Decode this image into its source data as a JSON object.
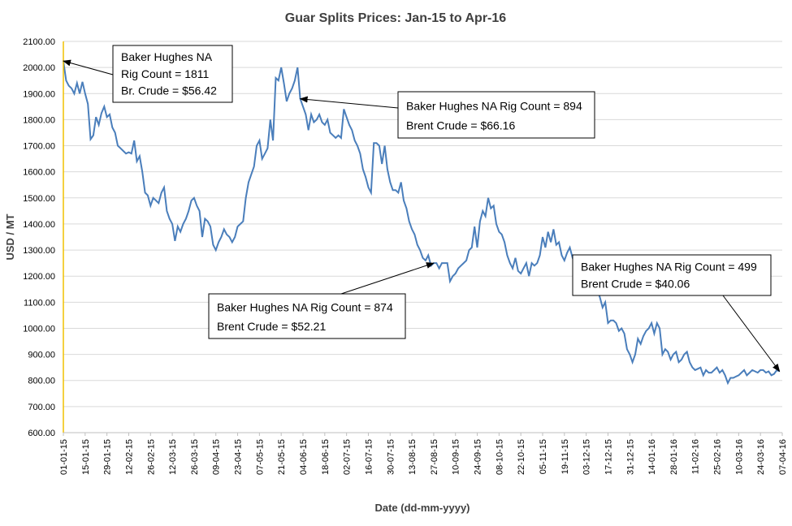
{
  "chart_data": {
    "type": "line",
    "title": "Guar Splits Prices: Jan-15 to Apr-16",
    "xlabel": "Date (dd-mm-yyyy)",
    "ylabel": "USD / MT",
    "ylim": [
      600,
      2100
    ],
    "yticks": [
      "600.00",
      "700.00",
      "800.00",
      "900.00",
      "1000.00",
      "1100.00",
      "1200.00",
      "1300.00",
      "1400.00",
      "1500.00",
      "1600.00",
      "1700.00",
      "1800.00",
      "1900.00",
      "2000.00",
      "2100.00"
    ],
    "xtick_labels": [
      "01-01-15",
      "15-01-15",
      "29-01-15",
      "12-02-15",
      "26-02-15",
      "12-03-15",
      "26-03-15",
      "09-04-15",
      "23-04-15",
      "07-05-15",
      "21-05-15",
      "04-06-15",
      "18-06-15",
      "02-07-15",
      "16-07-15",
      "30-07-15",
      "13-08-15",
      "27-08-15",
      "10-09-15",
      "24-09-15",
      "08-10-15",
      "22-10-15",
      "05-11-15",
      "19-11-15",
      "03-12-15",
      "17-12-15",
      "31-12-15",
      "14-01-16",
      "28-01-16",
      "11-02-16",
      "25-02-16",
      "10-03-16",
      "24-03-16",
      "07-04-16"
    ],
    "grid": "horizontal",
    "legend": "none",
    "line_color": "#4a7ebb",
    "series": [
      {
        "points": [
          [
            0,
            2025
          ],
          [
            1,
            1950
          ],
          [
            2,
            1930
          ],
          [
            3,
            1920
          ],
          [
            4,
            1900
          ],
          [
            5,
            1940
          ],
          [
            6,
            1900
          ],
          [
            7,
            1945
          ],
          [
            8,
            1900
          ],
          [
            9,
            1860
          ],
          [
            10,
            1725
          ],
          [
            11,
            1740
          ],
          [
            12,
            1810
          ],
          [
            13,
            1780
          ],
          [
            14,
            1825
          ],
          [
            15,
            1850
          ],
          [
            16,
            1810
          ],
          [
            17,
            1820
          ],
          [
            18,
            1770
          ],
          [
            19,
            1750
          ],
          [
            20,
            1700
          ],
          [
            21,
            1690
          ],
          [
            22,
            1680
          ],
          [
            23,
            1670
          ],
          [
            24,
            1675
          ],
          [
            25,
            1670
          ],
          [
            26,
            1720
          ],
          [
            27,
            1640
          ],
          [
            28,
            1660
          ],
          [
            29,
            1600
          ],
          [
            30,
            1520
          ],
          [
            31,
            1510
          ],
          [
            32,
            1470
          ],
          [
            33,
            1500
          ],
          [
            34,
            1490
          ],
          [
            35,
            1480
          ],
          [
            36,
            1520
          ],
          [
            37,
            1540
          ],
          [
            38,
            1450
          ],
          [
            39,
            1420
          ],
          [
            40,
            1400
          ],
          [
            41,
            1335
          ],
          [
            42,
            1390
          ],
          [
            43,
            1370
          ],
          [
            44,
            1400
          ],
          [
            45,
            1420
          ],
          [
            46,
            1450
          ],
          [
            47,
            1490
          ],
          [
            48,
            1500
          ],
          [
            49,
            1470
          ],
          [
            50,
            1450
          ],
          [
            51,
            1350
          ],
          [
            52,
            1420
          ],
          [
            53,
            1410
          ],
          [
            54,
            1390
          ],
          [
            55,
            1320
          ],
          [
            56,
            1300
          ],
          [
            57,
            1330
          ],
          [
            58,
            1350
          ],
          [
            59,
            1380
          ],
          [
            60,
            1360
          ],
          [
            61,
            1350
          ],
          [
            62,
            1330
          ],
          [
            63,
            1350
          ],
          [
            64,
            1390
          ],
          [
            65,
            1400
          ],
          [
            66,
            1410
          ],
          [
            67,
            1500
          ],
          [
            68,
            1560
          ],
          [
            69,
            1590
          ],
          [
            70,
            1620
          ],
          [
            71,
            1700
          ],
          [
            72,
            1720
          ],
          [
            73,
            1650
          ],
          [
            74,
            1670
          ],
          [
            75,
            1690
          ],
          [
            76,
            1800
          ],
          [
            77,
            1720
          ],
          [
            78,
            1960
          ],
          [
            79,
            1950
          ],
          [
            80,
            2000
          ],
          [
            81,
            1940
          ],
          [
            82,
            1870
          ],
          [
            83,
            1900
          ],
          [
            84,
            1920
          ],
          [
            85,
            1950
          ],
          [
            86,
            2000
          ],
          [
            87,
            1880
          ],
          [
            88,
            1850
          ],
          [
            89,
            1820
          ],
          [
            90,
            1760
          ],
          [
            91,
            1820
          ],
          [
            92,
            1790
          ],
          [
            93,
            1800
          ],
          [
            94,
            1820
          ],
          [
            95,
            1790
          ],
          [
            96,
            1780
          ],
          [
            97,
            1800
          ],
          [
            98,
            1750
          ],
          [
            99,
            1740
          ],
          [
            100,
            1730
          ],
          [
            101,
            1740
          ],
          [
            102,
            1730
          ],
          [
            103,
            1840
          ],
          [
            104,
            1810
          ],
          [
            105,
            1780
          ],
          [
            106,
            1760
          ],
          [
            107,
            1720
          ],
          [
            108,
            1700
          ],
          [
            109,
            1670
          ],
          [
            110,
            1610
          ],
          [
            111,
            1580
          ],
          [
            112,
            1540
          ],
          [
            113,
            1520
          ],
          [
            114,
            1710
          ],
          [
            115,
            1710
          ],
          [
            116,
            1700
          ],
          [
            117,
            1630
          ],
          [
            118,
            1700
          ],
          [
            119,
            1610
          ],
          [
            120,
            1560
          ],
          [
            121,
            1530
          ],
          [
            122,
            1530
          ],
          [
            123,
            1520
          ],
          [
            124,
            1560
          ],
          [
            125,
            1490
          ],
          [
            126,
            1460
          ],
          [
            127,
            1410
          ],
          [
            128,
            1380
          ],
          [
            129,
            1360
          ],
          [
            130,
            1320
          ],
          [
            131,
            1300
          ],
          [
            132,
            1270
          ],
          [
            133,
            1260
          ],
          [
            134,
            1280
          ],
          [
            135,
            1240
          ],
          [
            136,
            1250
          ],
          [
            137,
            1250
          ],
          [
            138,
            1230
          ],
          [
            139,
            1250
          ],
          [
            140,
            1250
          ],
          [
            141,
            1250
          ],
          [
            142,
            1180
          ],
          [
            143,
            1200
          ],
          [
            144,
            1210
          ],
          [
            145,
            1230
          ],
          [
            146,
            1240
          ],
          [
            147,
            1250
          ],
          [
            148,
            1260
          ],
          [
            149,
            1300
          ],
          [
            150,
            1310
          ],
          [
            151,
            1390
          ],
          [
            152,
            1310
          ],
          [
            153,
            1410
          ],
          [
            154,
            1450
          ],
          [
            155,
            1430
          ],
          [
            156,
            1500
          ],
          [
            157,
            1460
          ],
          [
            158,
            1470
          ],
          [
            159,
            1400
          ],
          [
            160,
            1370
          ],
          [
            161,
            1360
          ],
          [
            162,
            1330
          ],
          [
            163,
            1280
          ],
          [
            164,
            1250
          ],
          [
            165,
            1230
          ],
          [
            166,
            1270
          ],
          [
            167,
            1220
          ],
          [
            168,
            1210
          ],
          [
            169,
            1230
          ],
          [
            170,
            1250
          ],
          [
            171,
            1200
          ],
          [
            172,
            1250
          ],
          [
            173,
            1240
          ],
          [
            174,
            1250
          ],
          [
            175,
            1280
          ],
          [
            176,
            1350
          ],
          [
            177,
            1310
          ],
          [
            178,
            1370
          ],
          [
            179,
            1330
          ],
          [
            180,
            1380
          ],
          [
            181,
            1320
          ],
          [
            182,
            1330
          ],
          [
            183,
            1280
          ],
          [
            184,
            1260
          ],
          [
            185,
            1290
          ],
          [
            186,
            1310
          ],
          [
            187,
            1270
          ],
          [
            188,
            1240
          ],
          [
            189,
            1260
          ],
          [
            190,
            1250
          ],
          [
            191,
            1240
          ],
          [
            192,
            1230
          ],
          [
            193,
            1220
          ],
          [
            194,
            1180
          ],
          [
            195,
            1170
          ],
          [
            196,
            1150
          ],
          [
            197,
            1120
          ],
          [
            198,
            1080
          ],
          [
            199,
            1100
          ],
          [
            200,
            1020
          ],
          [
            201,
            1030
          ],
          [
            202,
            1030
          ],
          [
            203,
            1020
          ],
          [
            204,
            990
          ],
          [
            205,
            1000
          ],
          [
            206,
            980
          ],
          [
            207,
            920
          ],
          [
            208,
            900
          ],
          [
            209,
            870
          ],
          [
            210,
            900
          ],
          [
            211,
            960
          ],
          [
            212,
            940
          ],
          [
            213,
            970
          ],
          [
            214,
            990
          ],
          [
            215,
            1000
          ],
          [
            216,
            1020
          ],
          [
            217,
            980
          ],
          [
            218,
            1020
          ],
          [
            219,
            1000
          ],
          [
            220,
            900
          ],
          [
            221,
            920
          ],
          [
            222,
            910
          ],
          [
            223,
            880
          ],
          [
            224,
            900
          ],
          [
            225,
            910
          ],
          [
            226,
            870
          ],
          [
            227,
            880
          ],
          [
            228,
            900
          ],
          [
            229,
            910
          ],
          [
            230,
            870
          ],
          [
            231,
            850
          ],
          [
            232,
            840
          ],
          [
            233,
            845
          ],
          [
            234,
            850
          ],
          [
            235,
            820
          ],
          [
            236,
            840
          ],
          [
            237,
            830
          ],
          [
            238,
            830
          ],
          [
            239,
            840
          ],
          [
            240,
            850
          ],
          [
            241,
            830
          ],
          [
            242,
            840
          ],
          [
            243,
            820
          ],
          [
            244,
            790
          ],
          [
            245,
            810
          ],
          [
            246,
            810
          ],
          [
            247,
            815
          ],
          [
            248,
            820
          ],
          [
            249,
            830
          ],
          [
            250,
            840
          ],
          [
            251,
            820
          ],
          [
            252,
            830
          ],
          [
            253,
            840
          ],
          [
            254,
            835
          ],
          [
            255,
            830
          ],
          [
            256,
            840
          ],
          [
            257,
            840
          ],
          [
            258,
            830
          ],
          [
            259,
            835
          ],
          [
            260,
            820
          ],
          [
            261,
            825
          ],
          [
            262,
            840
          ],
          [
            263,
            835
          ]
        ]
      }
    ],
    "annotations": [
      {
        "lines": [
          "Baker Hughes NA",
          "Rig Count = 1811",
          "Br. Crude = $56.42"
        ],
        "target": [
          0,
          2025
        ]
      },
      {
        "lines": [
          "Baker Hughes NA Rig Count = 894",
          "Brent Crude = $66.16"
        ],
        "target": [
          87,
          1880
        ]
      },
      {
        "lines": [
          "Baker Hughes NA Rig Count = 874",
          "Brent Crude = $52.21"
        ],
        "target": [
          136,
          1250
        ]
      },
      {
        "lines": [
          "Baker Hughes NA Rig Count = 499",
          "Brent Crude = $40.06"
        ],
        "target": [
          263,
          835
        ]
      }
    ]
  }
}
